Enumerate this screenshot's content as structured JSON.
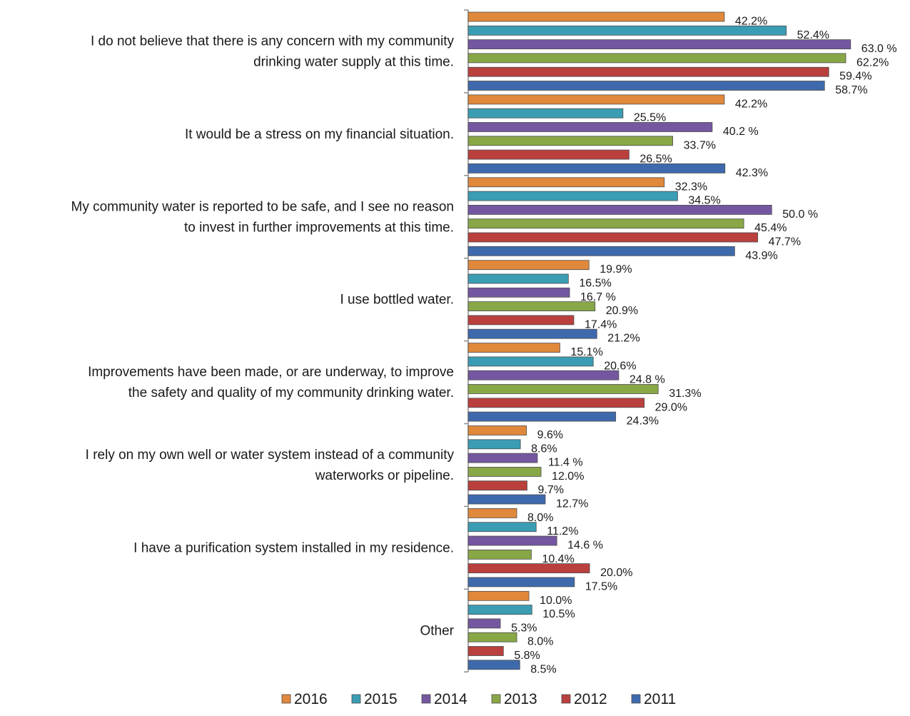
{
  "chart_data": {
    "type": "bar",
    "orientation": "horizontal",
    "categories": [
      [
        "I do not believe that there is any concern with my community",
        "drinking water supply at this time."
      ],
      [
        "It would be a stress on my financial situation."
      ],
      [
        "My community water is reported to be safe, and I see no reason",
        "to invest in further improvements at this time."
      ],
      [
        "I use bottled water."
      ],
      [
        "Improvements have been made, or are underway, to improve",
        "the safety and quality of my community drinking water."
      ],
      [
        "I rely on my own well or water system instead of a community",
        "waterworks or pipeline."
      ],
      [
        "I have a purification system installed in my residence."
      ],
      [
        "Other"
      ]
    ],
    "series": [
      {
        "name": "2016",
        "color": "#e0883b",
        "values": [
          42.2,
          42.2,
          32.3,
          19.9,
          15.1,
          9.6,
          8.0,
          10.0
        ],
        "labels": [
          "42.2%",
          "42.2%",
          "32.3%",
          "19.9%",
          "15.1%",
          "9.6%",
          "8.0%",
          "10.0%"
        ]
      },
      {
        "name": "2015",
        "color": "#3a9db3",
        "values": [
          52.4,
          25.5,
          34.5,
          16.5,
          20.6,
          8.6,
          11.2,
          10.5
        ],
        "labels": [
          "52.4%",
          "25.5%",
          "34.5%",
          "16.5%",
          "20.6%",
          "8.6%",
          "11.2%",
          "10.5%"
        ]
      },
      {
        "name": "2014",
        "color": "#7457a0",
        "values": [
          63.0,
          40.2,
          50.0,
          16.7,
          24.8,
          11.4,
          14.6,
          5.3
        ],
        "labels": [
          "63.0 %",
          "40.2 %",
          "50.0 %",
          "16.7 %",
          "24.8 %",
          "11.4 %",
          "14.6 %",
          "5.3%"
        ]
      },
      {
        "name": "2013",
        "color": "#88a746",
        "values": [
          62.2,
          33.7,
          45.4,
          20.9,
          31.3,
          12.0,
          10.4,
          8.0
        ],
        "labels": [
          "62.2%",
          "33.7%",
          "45.4%",
          "20.9%",
          "31.3%",
          "12.0%",
          "10.4%",
          "8.0%"
        ]
      },
      {
        "name": "2012",
        "color": "#b9403d",
        "values": [
          59.4,
          26.5,
          47.7,
          17.4,
          29.0,
          9.7,
          20.0,
          5.8
        ],
        "labels": [
          "59.4%",
          "26.5%",
          "47.7%",
          "17.4%",
          "29.0%",
          "9.7%",
          "20.0%",
          "5.8%"
        ]
      },
      {
        "name": "2011",
        "color": "#3e6aad",
        "values": [
          58.7,
          42.3,
          43.9,
          21.2,
          24.3,
          12.7,
          17.5,
          8.5
        ],
        "labels": [
          "58.7%",
          "42.3%",
          "43.9%",
          "21.2%",
          "24.3%",
          "12.7%",
          "17.5%",
          "8.5%"
        ]
      }
    ],
    "xlim": [
      0,
      70
    ],
    "grid": false,
    "legend_position": "bottom"
  }
}
